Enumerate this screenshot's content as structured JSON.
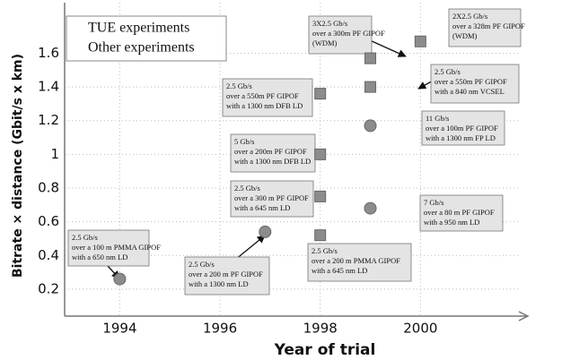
{
  "chart_data": {
    "type": "scatter",
    "x_label": "Year of trial",
    "y_label": "Bitrate × distance (Gbit/s x km)",
    "xlim": [
      1992.9,
      2002
    ],
    "ylim": [
      0.04,
      1.9
    ],
    "xticks": [
      1994,
      1996,
      1998,
      2000
    ],
    "yticks": [
      0.2,
      0.4,
      0.6,
      0.8,
      1,
      1.2,
      1.4,
      1.6
    ],
    "grid": true,
    "legend": "upper left",
    "series": [
      {
        "name": "TUE experiments",
        "marker": "square",
        "color": "#8c8c8c",
        "x": [
          1998,
          1998,
          1998,
          1998,
          1999,
          1999,
          2000
        ],
        "values": [
          0.52,
          0.75,
          1.0,
          1.36,
          1.57,
          1.4,
          1.67
        ]
      },
      {
        "name": "Other experiments",
        "marker": "circle",
        "color": "#8c8c8c",
        "x": [
          1994,
          1996.9,
          1999,
          1999
        ],
        "values": [
          0.26,
          0.54,
          1.17,
          0.68
        ]
      }
    ],
    "annotations": [
      [
        "2.5 Gb/s",
        "over a 100 m PMMA GIPOF",
        "with a  650 nm LD"
      ],
      [
        "2.5 Gb/s",
        "over a 200 m PF GIPOF",
        "with a 1300 nm LD"
      ],
      [
        "2.5 Gb/s",
        "over a 200 m PMMA GIPOF",
        "with a  645 nm LD"
      ],
      [
        "2.5 Gb/s",
        "over a 300 m PF GIPOF",
        "with a  645 nm LD"
      ],
      [
        "5 Gb/s",
        "over a 200m PF GIPOF",
        "with a 1300 nm DFB LD"
      ],
      [
        "2.5 Gb/s",
        "over a 550m PF GIPOF",
        "with a 1300  nm DFB LD"
      ],
      [
        "3X2.5 Gb/s",
        "over a 300m PF GIPOF",
        "(WDM)"
      ],
      [
        "2X2.5 Gb/s",
        "over a 328m PF GIPOF",
        "(WDM)"
      ],
      [
        "2.5 Gb/s",
        "over a 550m PF GIPOF",
        "with a  840  nm VCSEL"
      ],
      [
        "11 Gb/s",
        "over a 100m PF GIPOF",
        "with a 1300 nm FP LD"
      ],
      [
        "7 Gb/s",
        "over a 80 m PF GIPOF",
        "with a  950 nm LD"
      ]
    ]
  }
}
